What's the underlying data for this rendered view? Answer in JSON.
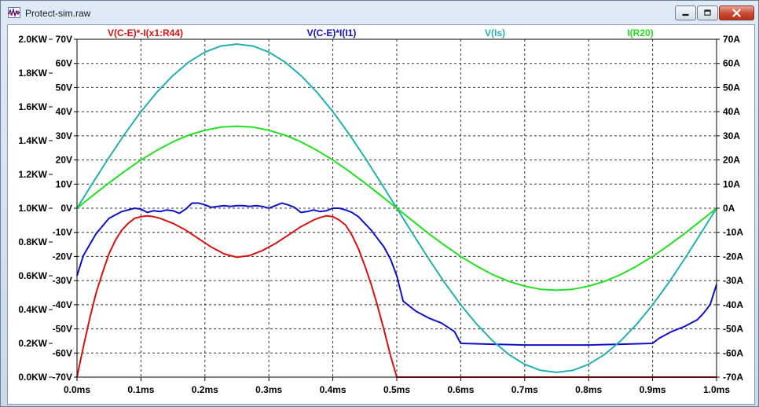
{
  "window": {
    "title": "Protect-sim.raw",
    "icon": "waveform-icon",
    "buttons": [
      "minimize-icon",
      "restore-icon",
      "close-icon"
    ]
  },
  "chart_data": {
    "type": "line",
    "xlabel": "",
    "x_range": [
      0,
      1.0
    ],
    "x_ticks": [
      "0.0ms",
      "0.1ms",
      "0.2ms",
      "0.3ms",
      "0.4ms",
      "0.5ms",
      "0.6ms",
      "0.7ms",
      "0.8ms",
      "0.9ms",
      "1.0ms"
    ],
    "y_power_range": [
      0,
      2.0
    ],
    "y_power_ticks": [
      "0.0KW",
      "0.2KW",
      "0.4KW",
      "0.6KW",
      "0.8KW",
      "1.0KW",
      "1.2KW",
      "1.4KW",
      "1.6KW",
      "1.8KW",
      "2.0KW"
    ],
    "y_voltage_range": [
      -70,
      70
    ],
    "y_voltage_ticks": [
      "-70V",
      "-60V",
      "-50V",
      "-40V",
      "-30V",
      "-20V",
      "-10V",
      "0V",
      "10V",
      "20V",
      "30V",
      "40V",
      "50V",
      "60V",
      "70V"
    ],
    "y_current_range": [
      -70,
      70
    ],
    "y_current_ticks": [
      "-70A",
      "-60A",
      "-50A",
      "-40A",
      "-30A",
      "-20A",
      "-10A",
      "0A",
      "10A",
      "20A",
      "30A",
      "40A",
      "50A",
      "60A",
      "70A"
    ],
    "grid": true,
    "legend_position": "top",
    "colors": {
      "red": "#ff0000",
      "blue": "#0000ff",
      "teal": "#00b2b2",
      "green": "#00ff00"
    },
    "series": [
      {
        "name": "V(C-E)*-I(x1:R44)",
        "axis": "power",
        "color": "#d81010",
        "x": [
          0,
          0.01,
          0.02,
          0.03,
          0.04,
          0.05,
          0.06,
          0.07,
          0.08,
          0.09,
          0.1,
          0.11,
          0.12,
          0.13,
          0.15,
          0.17,
          0.19,
          0.21,
          0.23,
          0.25,
          0.27,
          0.29,
          0.31,
          0.33,
          0.35,
          0.37,
          0.38,
          0.39,
          0.4,
          0.41,
          0.42,
          0.43,
          0.44,
          0.45,
          0.46,
          0.47,
          0.48,
          0.49,
          0.5,
          0.5,
          0.75,
          1.0
        ],
        "y": [
          0.0,
          0.18,
          0.35,
          0.5,
          0.62,
          0.73,
          0.81,
          0.87,
          0.91,
          0.94,
          0.95,
          0.955,
          0.95,
          0.94,
          0.91,
          0.87,
          0.82,
          0.77,
          0.73,
          0.71,
          0.72,
          0.75,
          0.79,
          0.84,
          0.89,
          0.93,
          0.945,
          0.955,
          0.95,
          0.93,
          0.9,
          0.84,
          0.76,
          0.66,
          0.55,
          0.42,
          0.28,
          0.13,
          0.0,
          0.0,
          0.0,
          0.0
        ]
      },
      {
        "name": "V(C-E)*I(I1)",
        "axis": "power",
        "color": "#1010c8",
        "x": [
          0,
          0.01,
          0.03,
          0.05,
          0.07,
          0.09,
          0.1,
          0.11,
          0.12,
          0.13,
          0.14,
          0.15,
          0.16,
          0.17,
          0.18,
          0.19,
          0.2,
          0.21,
          0.22,
          0.23,
          0.24,
          0.25,
          0.26,
          0.27,
          0.28,
          0.29,
          0.3,
          0.31,
          0.32,
          0.33,
          0.34,
          0.35,
          0.36,
          0.37,
          0.38,
          0.39,
          0.4,
          0.41,
          0.42,
          0.43,
          0.44,
          0.45,
          0.46,
          0.47,
          0.48,
          0.49,
          0.5,
          0.51,
          0.53,
          0.55,
          0.57,
          0.59,
          0.6,
          0.65,
          0.7,
          0.75,
          0.8,
          0.85,
          0.9,
          0.91,
          0.93,
          0.95,
          0.97,
          0.98,
          0.99,
          1.0
        ],
        "y": [
          0.6,
          0.72,
          0.85,
          0.94,
          0.98,
          1.0,
          0.995,
          0.975,
          0.985,
          0.98,
          0.99,
          0.985,
          0.97,
          0.995,
          1.03,
          1.03,
          1.02,
          1.005,
          1.01,
          1.015,
          1.01,
          1.015,
          1.015,
          1.01,
          1.015,
          1.01,
          1.0,
          1.015,
          1.03,
          1.02,
          1.005,
          0.975,
          0.98,
          0.99,
          0.98,
          0.985,
          1.0,
          1.0,
          0.99,
          0.975,
          0.95,
          0.91,
          0.87,
          0.82,
          0.77,
          0.7,
          0.6,
          0.45,
          0.39,
          0.35,
          0.32,
          0.27,
          0.2,
          0.195,
          0.19,
          0.19,
          0.19,
          0.195,
          0.2,
          0.23,
          0.27,
          0.3,
          0.34,
          0.38,
          0.43,
          0.55
        ]
      },
      {
        "name": "V(Is)",
        "axis": "voltage",
        "color": "#20b0b0",
        "x": [
          0,
          0.025,
          0.05,
          0.075,
          0.1,
          0.125,
          0.15,
          0.175,
          0.2,
          0.225,
          0.25,
          0.275,
          0.3,
          0.325,
          0.35,
          0.375,
          0.4,
          0.425,
          0.45,
          0.475,
          0.5,
          0.525,
          0.55,
          0.575,
          0.6,
          0.625,
          0.65,
          0.675,
          0.7,
          0.725,
          0.75,
          0.775,
          0.8,
          0.825,
          0.85,
          0.875,
          0.9,
          0.925,
          0.95,
          0.975,
          1.0
        ],
        "y": [
          0,
          10.6,
          21.0,
          30.9,
          40.0,
          48.1,
          55.0,
          60.6,
          64.7,
          67.2,
          68.0,
          67.2,
          64.7,
          60.6,
          55.0,
          48.1,
          40.0,
          30.9,
          21.0,
          10.6,
          0,
          -10.6,
          -21.0,
          -30.9,
          -40.0,
          -48.1,
          -55.0,
          -60.6,
          -64.7,
          -67.2,
          -68.0,
          -67.2,
          -64.7,
          -60.6,
          -55.0,
          -48.1,
          -40.0,
          -30.9,
          -21.0,
          -10.6,
          0
        ]
      },
      {
        "name": "I(R20)",
        "axis": "current",
        "color": "#20e020",
        "x": [
          0,
          0.025,
          0.05,
          0.075,
          0.1,
          0.125,
          0.15,
          0.175,
          0.2,
          0.225,
          0.25,
          0.275,
          0.3,
          0.325,
          0.35,
          0.375,
          0.4,
          0.425,
          0.45,
          0.475,
          0.5,
          0.525,
          0.55,
          0.575,
          0.6,
          0.625,
          0.65,
          0.675,
          0.7,
          0.725,
          0.75,
          0.775,
          0.8,
          0.825,
          0.85,
          0.875,
          0.9,
          0.925,
          0.95,
          0.975,
          1.0
        ],
        "y": [
          0,
          5.3,
          10.5,
          15.4,
          20.0,
          24.0,
          27.5,
          30.3,
          32.3,
          33.6,
          34.0,
          33.6,
          32.3,
          30.3,
          27.5,
          24.0,
          20.0,
          15.4,
          10.5,
          5.3,
          0,
          -5.3,
          -10.5,
          -15.4,
          -20.0,
          -24.0,
          -27.5,
          -30.3,
          -32.3,
          -33.6,
          -34.0,
          -33.6,
          -32.3,
          -30.3,
          -27.5,
          -24.0,
          -20.0,
          -15.4,
          -10.5,
          -5.3,
          0
        ]
      }
    ]
  }
}
